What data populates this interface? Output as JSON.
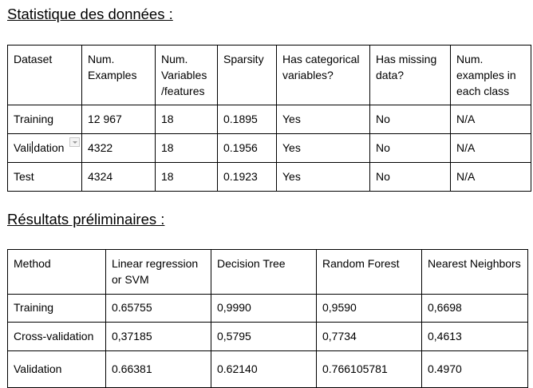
{
  "headings": {
    "stats": "Statistique des données :",
    "results": "Résultats préliminaires :"
  },
  "stats_table": {
    "headers": [
      "Dataset",
      "Num. Examples",
      "Num. Variables /features",
      "Sparsity",
      "Has categorical variables?",
      "Has missing data?",
      "Num. examples in each class"
    ],
    "rows": [
      [
        "Training",
        "12 967",
        "18",
        "0.1895",
        "Yes",
        "No",
        "N/A"
      ],
      [
        "Validation",
        "4322",
        "18",
        "0.1956",
        "Yes",
        "No",
        "N/A"
      ],
      [
        "Test",
        "4324",
        "18",
        "0.1923",
        "Yes",
        "No",
        "N/A"
      ]
    ],
    "validation_label_start": "Vali",
    "validation_label_end": "dation"
  },
  "results_table": {
    "headers": [
      "Method",
      "Linear regression or SVM",
      "Decision Tree",
      "Random Forest",
      "Nearest Neighbors"
    ],
    "rows": [
      [
        "Training",
        "0.65755",
        "0,9990",
        "0,9590",
        "0,6698"
      ],
      [
        "Cross-validation",
        "0,37185",
        "0,5795",
        "0,7734",
        "0,4613"
      ],
      [
        "Validation",
        "0.66381",
        "0.62140",
        "0.766105781",
        "0.4970"
      ]
    ]
  },
  "icons": {
    "cell_dropdown": "dropdown-arrow-icon"
  }
}
